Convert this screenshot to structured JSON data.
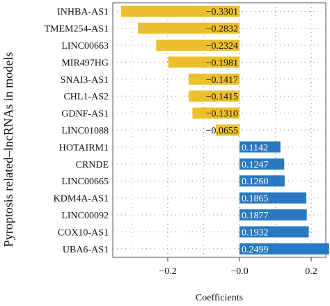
{
  "chart_data": {
    "type": "bar",
    "orientation": "horizontal",
    "title": "",
    "xlabel": "Coefficients",
    "ylabel": "Pyroptosis related–lncRNAs in models",
    "xlim": [
      -0.34,
      0.25
    ],
    "xticks": [
      -0.2,
      0.0,
      0.2
    ],
    "xtick_labels": [
      "−0.2",
      "−0.0",
      "0.2"
    ],
    "grid": "dotted",
    "colors": {
      "negative": "#ecc02c",
      "positive": "#2a79c0"
    },
    "categories": [
      "INHBA-AS1",
      "TMEM254-AS1",
      "LINC00663",
      "MIR497HG",
      "SNAI3-AS1",
      "CHL1-AS2",
      "GDNF-AS1",
      "LINC01088",
      "HOTAIRM1",
      "CRNDE",
      "LINC00665",
      "KDM4A-AS1",
      "LINC00092",
      "COX10-AS1",
      "UBA6-AS1"
    ],
    "values": [
      -0.3301,
      -0.2832,
      -0.2324,
      -0.1981,
      -0.1417,
      -0.1415,
      -0.131,
      -0.0655,
      0.1142,
      0.1247,
      0.126,
      0.1865,
      0.1877,
      0.1932,
      0.2499
    ],
    "value_labels": [
      "−0.3301",
      "−0.2832",
      "−0.2324",
      "−0.1981",
      "−0.1417",
      "−0.1415",
      "−0.1310",
      "−0.0655",
      "0.1142",
      "0.1247",
      "0.1260",
      "0.1865",
      "0.1877",
      "0.1932",
      "0.2499"
    ]
  }
}
